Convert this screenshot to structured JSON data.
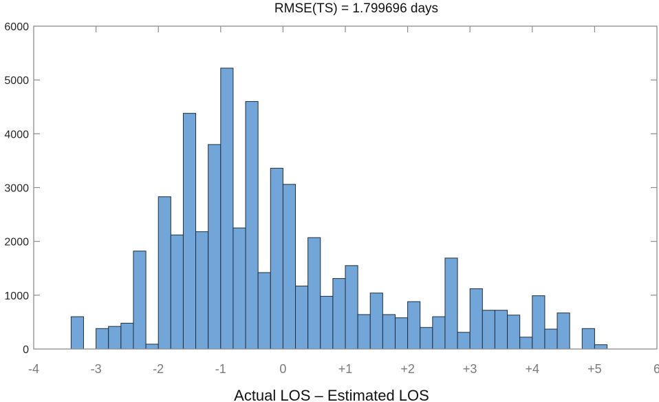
{
  "chart_data": {
    "type": "bar",
    "subtype": "histogram",
    "title": "RMSE(TS) = 1.799696 days",
    "xlabel": "Actual LOS – Estimated LOS",
    "ylabel": "",
    "xlim": [
      -4,
      6
    ],
    "ylim": [
      0,
      6000
    ],
    "bin_width": 0.2,
    "bin_edges_start": -3.4,
    "yticks": [
      0,
      1000,
      2000,
      3000,
      4000,
      5000,
      6000
    ],
    "ytick_labels": [
      "0",
      "1000",
      "2000",
      "3000",
      "4000",
      "5000",
      "6000"
    ],
    "xticks": [
      -4,
      -3,
      -2,
      -1,
      0,
      1,
      2,
      3,
      4,
      5,
      6
    ],
    "xtick_labels": [
      "-4",
      "-3",
      "-2",
      "-1",
      "0",
      "+1",
      "+2",
      "+3",
      "+4",
      "+5",
      "6"
    ],
    "grid": false,
    "bar_color": "#72a6d8",
    "edge_color": "#1f2d3d",
    "bins": [
      {
        "left": -3.4,
        "value": 600
      },
      {
        "left": -3.2,
        "value": 0
      },
      {
        "left": -3.0,
        "value": 380
      },
      {
        "left": -2.8,
        "value": 420
      },
      {
        "left": -2.6,
        "value": 480
      },
      {
        "left": -2.4,
        "value": 1820
      },
      {
        "left": -2.2,
        "value": 90
      },
      {
        "left": -2.0,
        "value": 2830
      },
      {
        "left": -1.8,
        "value": 2120
      },
      {
        "left": -1.6,
        "value": 4380
      },
      {
        "left": -1.4,
        "value": 2180
      },
      {
        "left": -1.2,
        "value": 3800
      },
      {
        "left": -1.0,
        "value": 5220
      },
      {
        "left": -0.8,
        "value": 2250
      },
      {
        "left": -0.6,
        "value": 4600
      },
      {
        "left": -0.4,
        "value": 1420
      },
      {
        "left": -0.2,
        "value": 3360
      },
      {
        "left": 0.0,
        "value": 3060
      },
      {
        "left": 0.2,
        "value": 1170
      },
      {
        "left": 0.4,
        "value": 2070
      },
      {
        "left": 0.6,
        "value": 980
      },
      {
        "left": 0.8,
        "value": 1310
      },
      {
        "left": 1.0,
        "value": 1550
      },
      {
        "left": 1.2,
        "value": 640
      },
      {
        "left": 1.4,
        "value": 1040
      },
      {
        "left": 1.6,
        "value": 640
      },
      {
        "left": 1.8,
        "value": 580
      },
      {
        "left": 2.0,
        "value": 880
      },
      {
        "left": 2.2,
        "value": 400
      },
      {
        "left": 2.4,
        "value": 600
      },
      {
        "left": 2.6,
        "value": 1690
      },
      {
        "left": 2.8,
        "value": 310
      },
      {
        "left": 3.0,
        "value": 1120
      },
      {
        "left": 3.2,
        "value": 720
      },
      {
        "left": 3.4,
        "value": 720
      },
      {
        "left": 3.6,
        "value": 630
      },
      {
        "left": 3.8,
        "value": 220
      },
      {
        "left": 4.0,
        "value": 990
      },
      {
        "left": 4.2,
        "value": 370
      },
      {
        "left": 4.4,
        "value": 670
      },
      {
        "left": 4.6,
        "value": 0
      },
      {
        "left": 4.8,
        "value": 380
      },
      {
        "left": 5.0,
        "value": 80
      }
    ]
  }
}
